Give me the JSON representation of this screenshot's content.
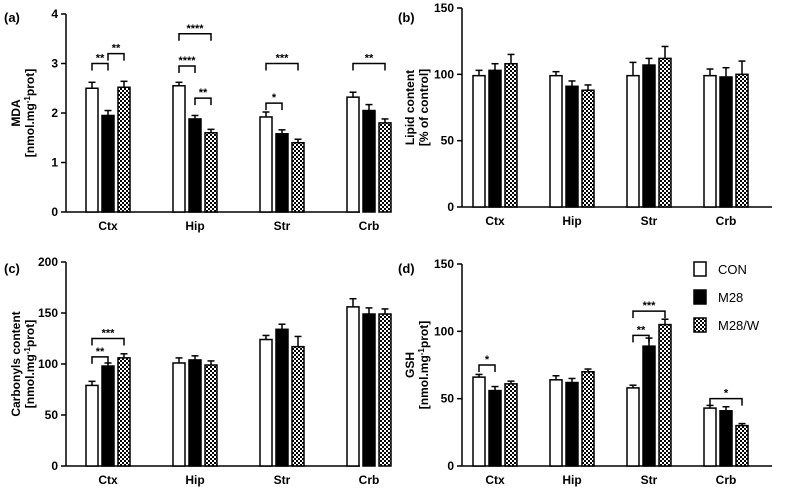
{
  "chart_data": [
    {
      "type": "bar",
      "panel": "(a)",
      "ylabel_lines": [
        "MDA",
        "[nmol.mg-1prot]"
      ],
      "ylabel_sup": "-1",
      "ylabel_parts": [
        "[nmol.mg",
        "prot]"
      ],
      "ylim": [
        0,
        4
      ],
      "yticks": [
        0,
        1,
        2,
        3,
        4
      ],
      "categories": [
        "Ctx",
        "Hip",
        "Str",
        "Crb"
      ],
      "series": [
        {
          "name": "CON",
          "values": [
            2.5,
            2.55,
            1.92,
            2.32
          ],
          "errors": [
            0.12,
            0.07,
            0.1,
            0.1
          ]
        },
        {
          "name": "M28",
          "values": [
            1.95,
            1.88,
            1.58,
            2.05
          ],
          "errors": [
            0.1,
            0.07,
            0.08,
            0.12
          ]
        },
        {
          "name": "M28/W",
          "values": [
            2.52,
            1.6,
            1.4,
            1.8
          ],
          "errors": [
            0.12,
            0.07,
            0.07,
            0.08
          ]
        }
      ],
      "significance": [
        {
          "category": 0,
          "from": 0,
          "to": 1,
          "y": 3.0,
          "label": "**"
        },
        {
          "category": 0,
          "from": 1,
          "to": 2,
          "y": 3.2,
          "label": "**"
        },
        {
          "category": 1,
          "from": 0,
          "to": 1,
          "y": 2.95,
          "label": "****"
        },
        {
          "category": 1,
          "from": 0,
          "to": 2,
          "y": 3.6,
          "label": "****"
        },
        {
          "category": 1,
          "from": 1,
          "to": 2,
          "y": 2.3,
          "label": "**"
        },
        {
          "category": 2,
          "from": 0,
          "to": 1,
          "y": 2.2,
          "label": "*"
        },
        {
          "category": 2,
          "from": 0,
          "to": 2,
          "y": 3.0,
          "label": "***"
        },
        {
          "category": 3,
          "from": 0,
          "to": 2,
          "y": 3.0,
          "label": "**"
        }
      ]
    },
    {
      "type": "bar",
      "panel": "(b)",
      "ylabel_lines": [
        "Lipid content",
        "[% of control]"
      ],
      "ylim": [
        0,
        150
      ],
      "yticks": [
        0,
        50,
        100,
        150
      ],
      "categories": [
        "Ctx",
        "Hip",
        "Str",
        "Crb"
      ],
      "series": [
        {
          "name": "CON",
          "values": [
            99,
            99,
            99,
            99
          ],
          "errors": [
            4,
            3,
            10,
            5
          ]
        },
        {
          "name": "M28",
          "values": [
            103,
            91,
            107,
            98
          ],
          "errors": [
            5,
            4,
            5,
            7
          ]
        },
        {
          "name": "M28/W",
          "values": [
            108,
            88,
            112,
            100
          ],
          "errors": [
            7,
            4,
            9,
            10
          ]
        }
      ],
      "significance": []
    },
    {
      "type": "bar",
      "panel": "(c)",
      "ylabel_lines": [
        "Carbonyls content",
        "[nmol.mg-1prot]"
      ],
      "ylabel_sup": "-1",
      "ylabel_parts": [
        "[nmol.mg",
        "prot]"
      ],
      "ylim": [
        0,
        200
      ],
      "yticks": [
        0,
        50,
        100,
        150,
        200
      ],
      "categories": [
        "Ctx",
        "Hip",
        "Str",
        "Crb"
      ],
      "series": [
        {
          "name": "CON",
          "values": [
            79,
            101,
            124,
            156
          ],
          "errors": [
            4,
            5,
            4,
            8
          ]
        },
        {
          "name": "M28",
          "values": [
            98,
            104,
            134,
            149
          ],
          "errors": [
            3,
            4,
            5,
            6
          ]
        },
        {
          "name": "M28/W",
          "values": [
            106,
            99,
            117,
            149
          ],
          "errors": [
            4,
            4,
            10,
            5
          ]
        }
      ],
      "significance": [
        {
          "category": 0,
          "from": 0,
          "to": 1,
          "y": 107,
          "label": "**"
        },
        {
          "category": 0,
          "from": 0,
          "to": 2,
          "y": 125,
          "label": "***"
        }
      ]
    },
    {
      "type": "bar",
      "panel": "(d)",
      "ylabel_lines": [
        "GSH",
        "[nmol.mg-1prot]"
      ],
      "ylabel_sup": "-1",
      "ylabel_parts": [
        "[nmol.mg",
        "prot]"
      ],
      "ylim": [
        0,
        150
      ],
      "yticks": [
        0,
        50,
        100,
        150
      ],
      "categories": [
        "Ctx",
        "Hip",
        "Str",
        "Crb"
      ],
      "series": [
        {
          "name": "CON",
          "values": [
            66,
            64,
            58,
            43
          ],
          "errors": [
            2,
            3,
            2,
            2
          ]
        },
        {
          "name": "M28",
          "values": [
            56,
            62,
            89,
            41
          ],
          "errors": [
            3,
            3,
            6,
            3
          ]
        },
        {
          "name": "M28/W",
          "values": [
            61,
            70,
            105,
            30
          ],
          "errors": [
            2,
            2,
            4,
            1.5
          ]
        }
      ],
      "significance": [
        {
          "category": 0,
          "from": 0,
          "to": 1,
          "y": 75,
          "label": "*"
        },
        {
          "category": 2,
          "from": 0,
          "to": 1,
          "y": 97,
          "label": "**"
        },
        {
          "category": 2,
          "from": 0,
          "to": 2,
          "y": 115,
          "label": "***"
        },
        {
          "category": 3,
          "from": 0,
          "to": 2,
          "y": 50,
          "label": "*"
        }
      ]
    }
  ],
  "legend": {
    "position": "right of panel (d)",
    "entries": [
      {
        "name": "CON",
        "fill": "white"
      },
      {
        "name": "M28",
        "fill": "black"
      },
      {
        "name": "M28/W",
        "fill": "checker"
      }
    ]
  }
}
